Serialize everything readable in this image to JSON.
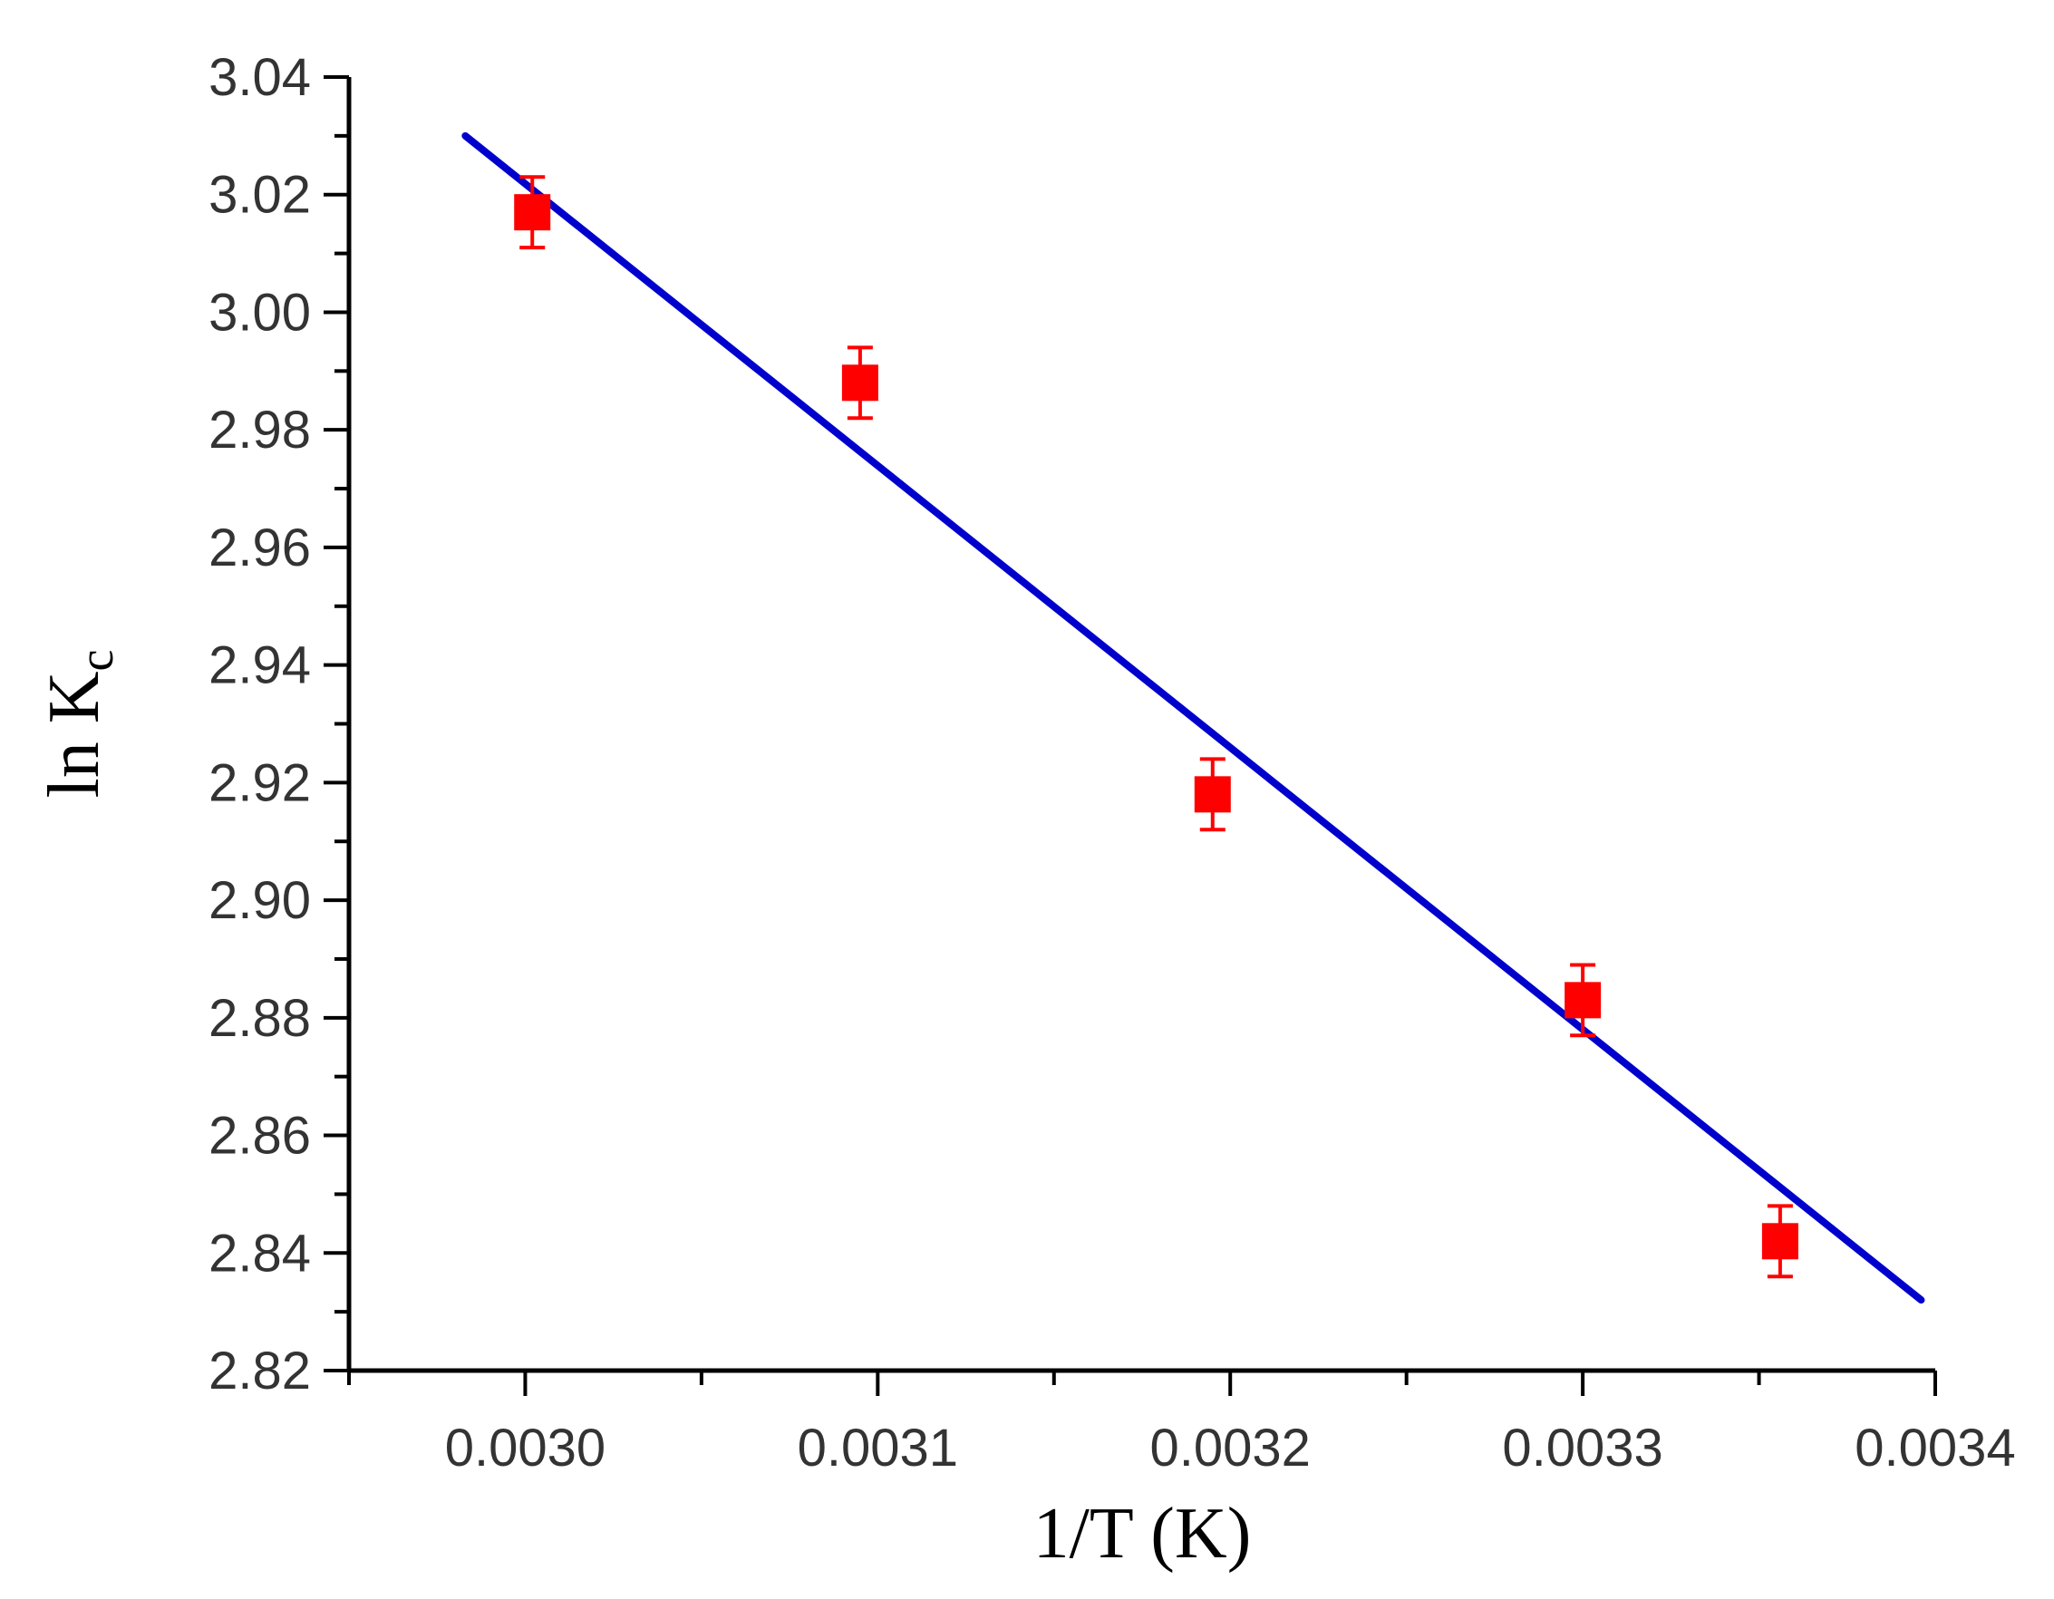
{
  "chart_data": {
    "type": "scatter",
    "xlabel": "1/T (K)",
    "ylabel_main": "ln K",
    "ylabel_sub": "c",
    "xlim": [
      0.00295,
      0.0034
    ],
    "ylim": [
      2.82,
      3.04
    ],
    "x_ticks": [
      "0.0030",
      "0.0031",
      "0.0032",
      "0.0033",
      "0.0034"
    ],
    "x_tick_values": [
      0.003,
      0.0031,
      0.0032,
      0.0033,
      0.0034
    ],
    "y_ticks": [
      "2.82",
      "2.84",
      "2.86",
      "2.88",
      "2.90",
      "2.92",
      "2.94",
      "2.96",
      "2.98",
      "3.00",
      "3.02",
      "3.04"
    ],
    "y_tick_values": [
      2.82,
      2.84,
      2.86,
      2.88,
      2.9,
      2.92,
      2.94,
      2.96,
      2.98,
      3.0,
      3.02,
      3.04
    ],
    "grid": false,
    "series": [
      {
        "type": "scatter",
        "color": "#ff0000",
        "marker": "square",
        "points": [
          {
            "x": 0.003002,
            "y": 3.017,
            "err": 0.006
          },
          {
            "x": 0.003095,
            "y": 2.988,
            "err": 0.006
          },
          {
            "x": 0.003195,
            "y": 2.918,
            "err": 0.006
          },
          {
            "x": 0.0033,
            "y": 2.883,
            "err": 0.006
          },
          {
            "x": 0.003356,
            "y": 2.842,
            "err": 0.006
          }
        ]
      },
      {
        "type": "line",
        "color": "#0000cc",
        "points": [
          {
            "x": 0.002983,
            "y": 3.03
          },
          {
            "x": 0.003396,
            "y": 2.832
          }
        ]
      }
    ]
  }
}
